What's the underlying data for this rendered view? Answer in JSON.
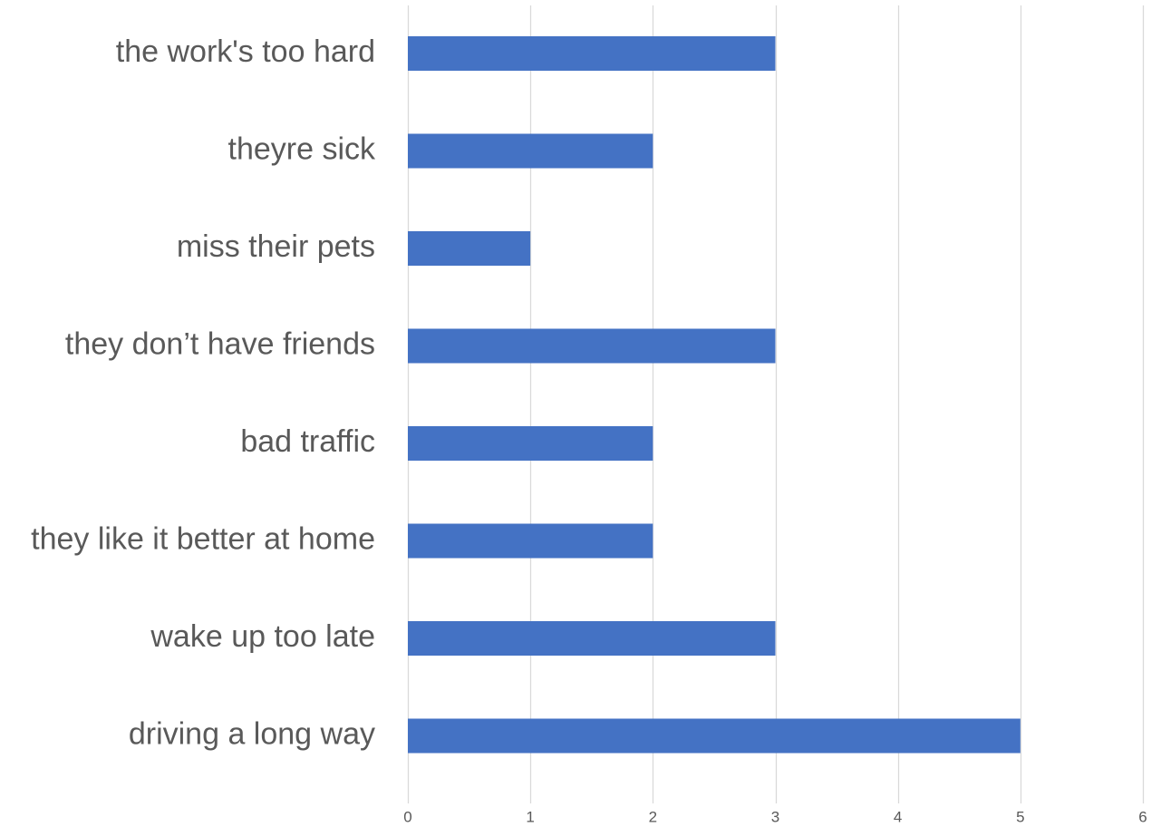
{
  "chart_data": {
    "type": "bar",
    "orientation": "horizontal",
    "title": "",
    "xlabel": "",
    "ylabel": "",
    "categories": [
      "the work's too hard",
      "theyre sick",
      "miss their pets",
      "they don’t have friends",
      "bad traffic",
      "they like it better at home",
      "wake up too late",
      "driving a long way"
    ],
    "values": [
      3,
      2,
      1,
      3,
      2,
      2,
      3,
      5
    ],
    "xlim": [
      0,
      6
    ],
    "xticks": [
      "0",
      "1",
      "2",
      "3",
      "4",
      "5",
      "6"
    ],
    "grid": true,
    "legend": "none",
    "colors": {
      "bar": "#4472C4",
      "grid": "#D9D9D9",
      "text": "#595959"
    }
  }
}
